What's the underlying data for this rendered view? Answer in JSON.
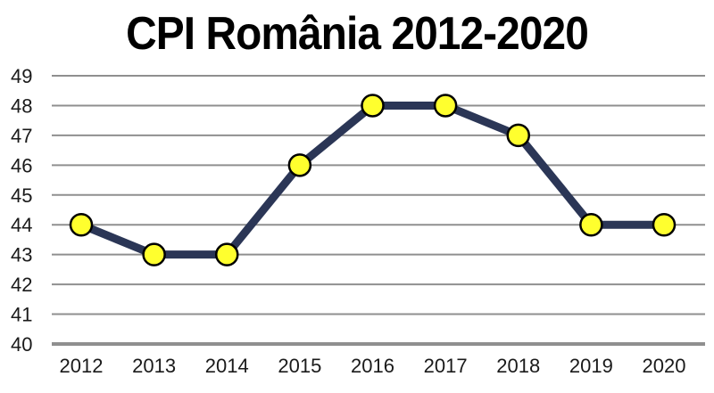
{
  "chart_data": {
    "type": "line",
    "title": "CPI România 2012-2020",
    "categories": [
      "2012",
      "2013",
      "2014",
      "2015",
      "2016",
      "2017",
      "2018",
      "2019",
      "2020"
    ],
    "values": [
      44,
      43,
      43,
      46,
      48,
      48,
      47,
      44,
      44
    ],
    "ylim": [
      40,
      49
    ],
    "yticks": [
      40,
      41,
      42,
      43,
      44,
      45,
      46,
      47,
      48,
      49
    ],
    "grid": true,
    "legend": "none",
    "colors": {
      "line": "#2b3656",
      "marker_fill": "#ffff2e",
      "marker_stroke": "#000000",
      "grid": "#8f8f8f",
      "baseline": "#8f8f8f"
    }
  }
}
